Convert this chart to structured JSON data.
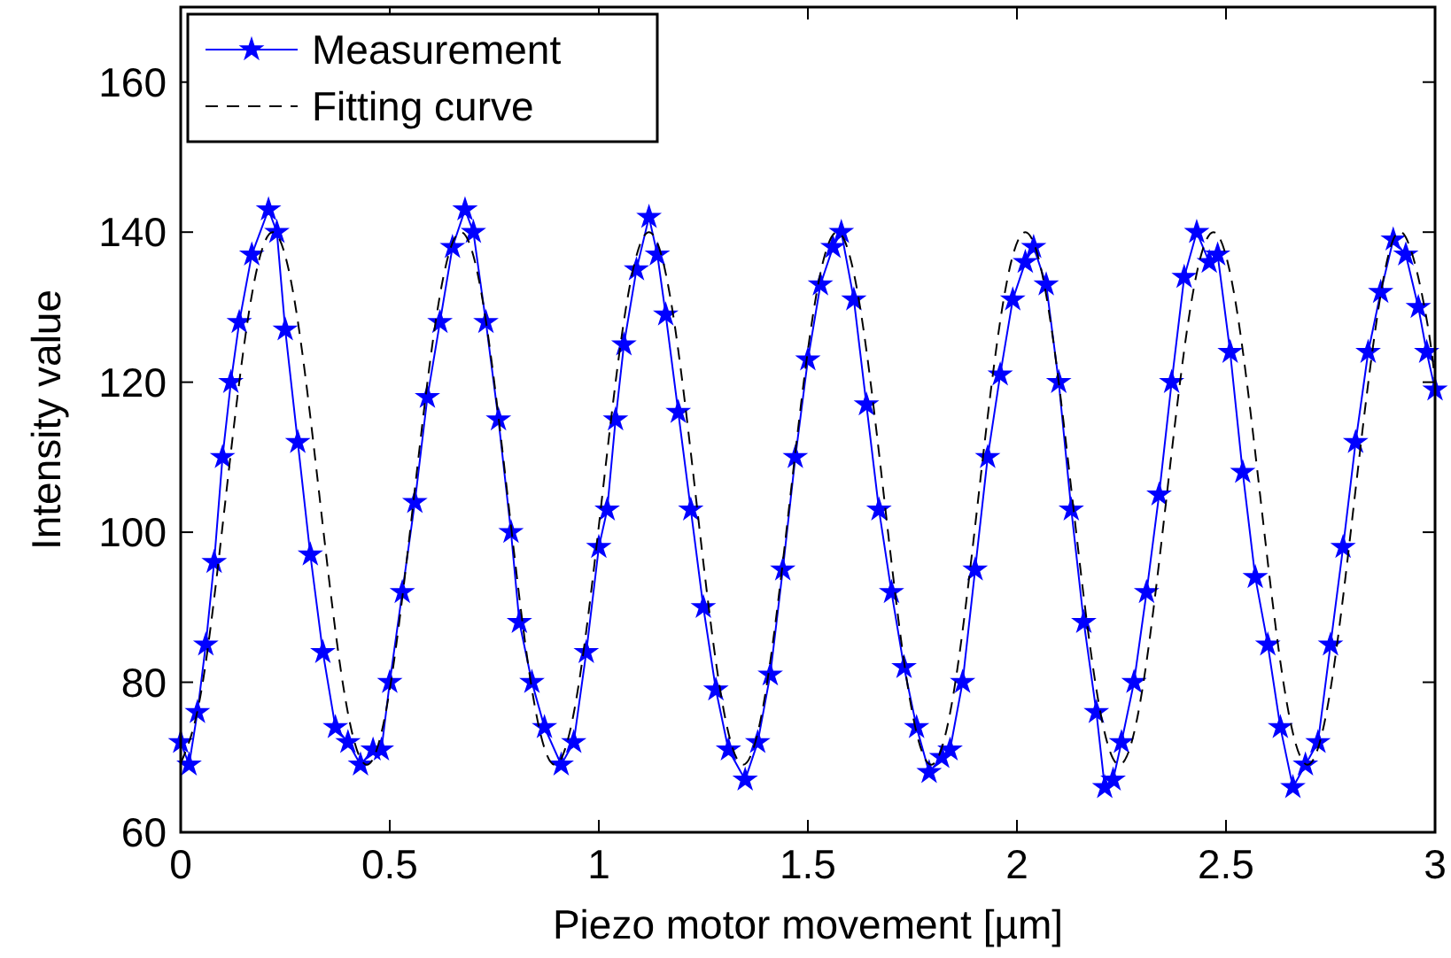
{
  "chart_data": {
    "type": "line",
    "xlabel": "Piezo motor movement [µm]",
    "ylabel": "Intensity value",
    "xlim": [
      0,
      3
    ],
    "ylim": [
      60,
      170
    ],
    "xticks": [
      0,
      0.5,
      1,
      1.5,
      2,
      2.5,
      3
    ],
    "yticks": [
      60,
      80,
      100,
      120,
      140,
      160
    ],
    "grid": false,
    "legend": "top left",
    "series": [
      {
        "name": "Measurement",
        "color": "#0000ff",
        "marker": "star",
        "line_style": "solid",
        "x": [
          0,
          0.02,
          0.04,
          0.06,
          0.08,
          0.1,
          0.12,
          0.14,
          0.17,
          0.21,
          0.23,
          0.25,
          0.28,
          0.31,
          0.34,
          0.37,
          0.4,
          0.43,
          0.46,
          0.48,
          0.5,
          0.53,
          0.56,
          0.59,
          0.62,
          0.65,
          0.68,
          0.7,
          0.73,
          0.76,
          0.79,
          0.81,
          0.84,
          0.87,
          0.91,
          0.94,
          0.97,
          1,
          1.02,
          1.04,
          1.06,
          1.09,
          1.12,
          1.14,
          1.16,
          1.19,
          1.22,
          1.25,
          1.28,
          1.31,
          1.35,
          1.38,
          1.41,
          1.44,
          1.47,
          1.5,
          1.53,
          1.56,
          1.58,
          1.61,
          1.64,
          1.67,
          1.7,
          1.73,
          1.76,
          1.79,
          1.82,
          1.84,
          1.87,
          1.9,
          1.93,
          1.96,
          1.99,
          2.02,
          2.04,
          2.07,
          2.1,
          2.13,
          2.16,
          2.19,
          2.21,
          2.23,
          2.25,
          2.28,
          2.31,
          2.34,
          2.37,
          2.4,
          2.43,
          2.46,
          2.48,
          2.51,
          2.54,
          2.57,
          2.6,
          2.63,
          2.66,
          2.69,
          2.72,
          2.75,
          2.78,
          2.81,
          2.84,
          2.87,
          2.9,
          2.93,
          2.96,
          2.98,
          3
        ],
        "values": [
          72,
          69,
          76,
          85,
          96,
          110,
          120,
          128,
          137,
          143,
          140,
          127,
          112,
          97,
          84,
          74,
          72,
          69,
          71,
          71,
          80,
          92,
          104,
          118,
          128,
          138,
          143,
          140,
          128,
          115,
          100,
          88,
          80,
          74,
          69,
          72,
          84,
          98,
          103,
          115,
          125,
          135,
          142,
          137,
          129,
          116,
          103,
          90,
          79,
          71,
          67,
          72,
          81,
          95,
          110,
          123,
          133,
          138,
          140,
          131,
          117,
          103,
          92,
          82,
          74,
          68,
          70,
          71,
          80,
          95,
          110,
          121,
          131,
          136,
          138,
          133,
          120,
          103,
          88,
          76,
          66,
          67,
          72,
          80,
          92,
          105,
          120,
          134,
          140,
          136,
          137,
          124,
          108,
          94,
          85,
          74,
          66,
          69,
          72,
          85,
          98,
          112,
          124,
          132,
          139,
          137,
          130,
          124,
          119
        ]
      },
      {
        "name": "Fitting curve",
        "color": "#000000",
        "marker": "none",
        "line_style": "dashed",
        "x": [
          0,
          0.051,
          0.1075,
          0.164,
          0.22,
          0.276,
          0.3325,
          0.389,
          0.445,
          0.501,
          0.5575,
          0.614,
          0.67,
          0.726,
          0.7825,
          0.839,
          0.895,
          0.951,
          1.0075,
          1.064,
          1.12,
          1.176,
          1.2325,
          1.289,
          1.345,
          1.401,
          1.4575,
          1.514,
          1.57,
          1.626,
          1.6825,
          1.739,
          1.795,
          1.851,
          1.9075,
          1.964,
          2.02,
          2.076,
          2.1325,
          2.189,
          2.245,
          2.301,
          2.3575,
          2.414,
          2.47,
          2.526,
          2.5825,
          2.639,
          2.695,
          2.751,
          2.8075,
          2.864,
          2.92,
          2.976,
          3
        ],
        "values": [
          69.2,
          79.4,
          104.5,
          129.6,
          140,
          129.6,
          104.5,
          79.4,
          69,
          79.4,
          104.5,
          129.6,
          140,
          129.6,
          104.5,
          79.4,
          69,
          79.4,
          104.5,
          129.6,
          140,
          129.6,
          104.5,
          79.4,
          69,
          79.4,
          104.5,
          129.6,
          140,
          129.6,
          104.5,
          79.4,
          69,
          79.4,
          104.5,
          129.6,
          140,
          129.6,
          104.5,
          79.4,
          69,
          79.4,
          104.5,
          129.6,
          140,
          129.6,
          104.5,
          79.4,
          69,
          79.4,
          104.5,
          129.6,
          140,
          129.6,
          120.1
        ]
      }
    ]
  }
}
